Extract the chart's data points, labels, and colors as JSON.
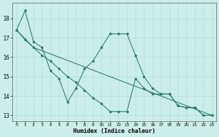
{
  "xlabel": "Humidex (Indice chaleur)",
  "bg_color": "#cceee8",
  "line_color": "#2a7a6a",
  "grid_color": "#aadddd",
  "ylim": [
    12.7,
    18.8
  ],
  "xlim": [
    -0.5,
    23.5
  ],
  "yticks": [
    13,
    14,
    15,
    16,
    17,
    18
  ],
  "xticks": [
    0,
    1,
    2,
    3,
    4,
    5,
    6,
    7,
    8,
    9,
    10,
    11,
    12,
    13,
    14,
    15,
    16,
    17,
    18,
    19,
    20,
    21,
    22,
    23
  ],
  "line1_x": [
    0,
    1,
    2,
    3,
    4,
    5,
    6,
    7,
    8,
    9,
    10,
    11,
    12,
    13,
    14,
    15,
    16,
    17,
    18,
    19,
    20,
    21,
    22,
    23
  ],
  "line1_y": [
    17.4,
    18.4,
    16.8,
    16.5,
    15.3,
    14.9,
    13.7,
    14.4,
    15.4,
    15.8,
    16.5,
    17.2,
    17.2,
    17.2,
    16.1,
    15.0,
    14.4,
    14.1,
    14.1,
    13.5,
    13.4,
    13.4,
    13.0,
    13.0
  ],
  "line2_x": [
    0,
    2,
    23
  ],
  "line2_y": [
    17.4,
    16.5,
    13.0
  ],
  "line3_x": [
    0,
    1,
    2,
    3,
    4,
    5,
    6,
    7,
    8,
    9,
    10,
    11,
    12,
    13,
    14,
    15,
    16,
    17,
    18,
    19,
    20,
    21,
    22,
    23
  ],
  "line3_y": [
    17.4,
    16.9,
    16.5,
    16.1,
    15.8,
    15.4,
    15.0,
    14.7,
    14.3,
    13.9,
    13.6,
    13.2,
    13.2,
    13.2,
    14.9,
    14.4,
    14.1,
    14.1,
    14.1,
    13.5,
    13.4,
    13.4,
    13.0,
    13.0
  ]
}
